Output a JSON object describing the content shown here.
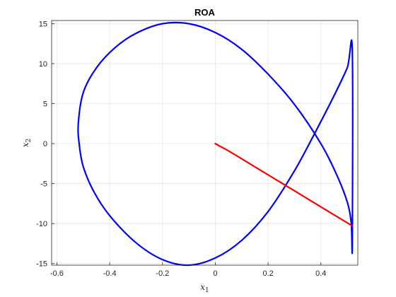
{
  "chart_data": {
    "type": "line",
    "title": "ROA",
    "xlabel": "x",
    "xlabel_subscript": "1",
    "ylabel": "x",
    "ylabel_subscript": "2",
    "xlim": [
      -0.62,
      0.54
    ],
    "ylim": [
      -15.2,
      15.4
    ],
    "xticks": [
      -0.6,
      -0.4,
      -0.2,
      0,
      0.2,
      0.4
    ],
    "xtick_labels": [
      "-0.6",
      "-0.4",
      "-0.2",
      "0",
      "0.2",
      "0.4"
    ],
    "yticks": [
      -15,
      -10,
      -5,
      0,
      5,
      10,
      15
    ],
    "ytick_labels": [
      "-15",
      "-10",
      "-5",
      "0",
      "5",
      "10",
      "15"
    ],
    "grid": true,
    "legend": "none",
    "series": [
      {
        "kind": "ellipse-boundary",
        "color": "#0000ff",
        "x": [
          0.519,
          0.515,
          0.5,
          0.46,
          0.4,
          0.3,
          0.2,
          0.1,
          0.0,
          -0.1,
          -0.2,
          -0.3,
          -0.38,
          -0.45,
          -0.5,
          -0.519,
          -0.515,
          -0.5,
          -0.46,
          -0.4,
          -0.3,
          -0.2,
          -0.1,
          0.0,
          0.1,
          0.2,
          0.3,
          0.38,
          0.45,
          0.5,
          0.519
        ],
        "y": [
          -12.5,
          -9.9,
          -7.3,
          -3.9,
          0.0,
          4.9,
          8.7,
          11.8,
          13.9,
          15.0,
          15.0,
          13.8,
          12.0,
          9.5,
          6.4,
          2.5,
          -0.2,
          -2.9,
          -6.0,
          -9.0,
          -12.4,
          -14.5,
          -15.2,
          -14.3,
          -12.1,
          -8.5,
          -3.4,
          1.5,
          6.0,
          9.5,
          11.6
        ],
        "order_note": ""
      },
      {
        "kind": "trajectory",
        "color": "#ff0000",
        "x": [
          0.0,
          0.05,
          0.1,
          0.15,
          0.2,
          0.25,
          0.3,
          0.35,
          0.4,
          0.45,
          0.5,
          0.519
        ],
        "y": [
          0.0,
          -0.9,
          -1.9,
          -2.9,
          -3.9,
          -4.9,
          -5.9,
          -6.9,
          -7.9,
          -8.9,
          -9.9,
          -10.3
        ]
      }
    ]
  }
}
